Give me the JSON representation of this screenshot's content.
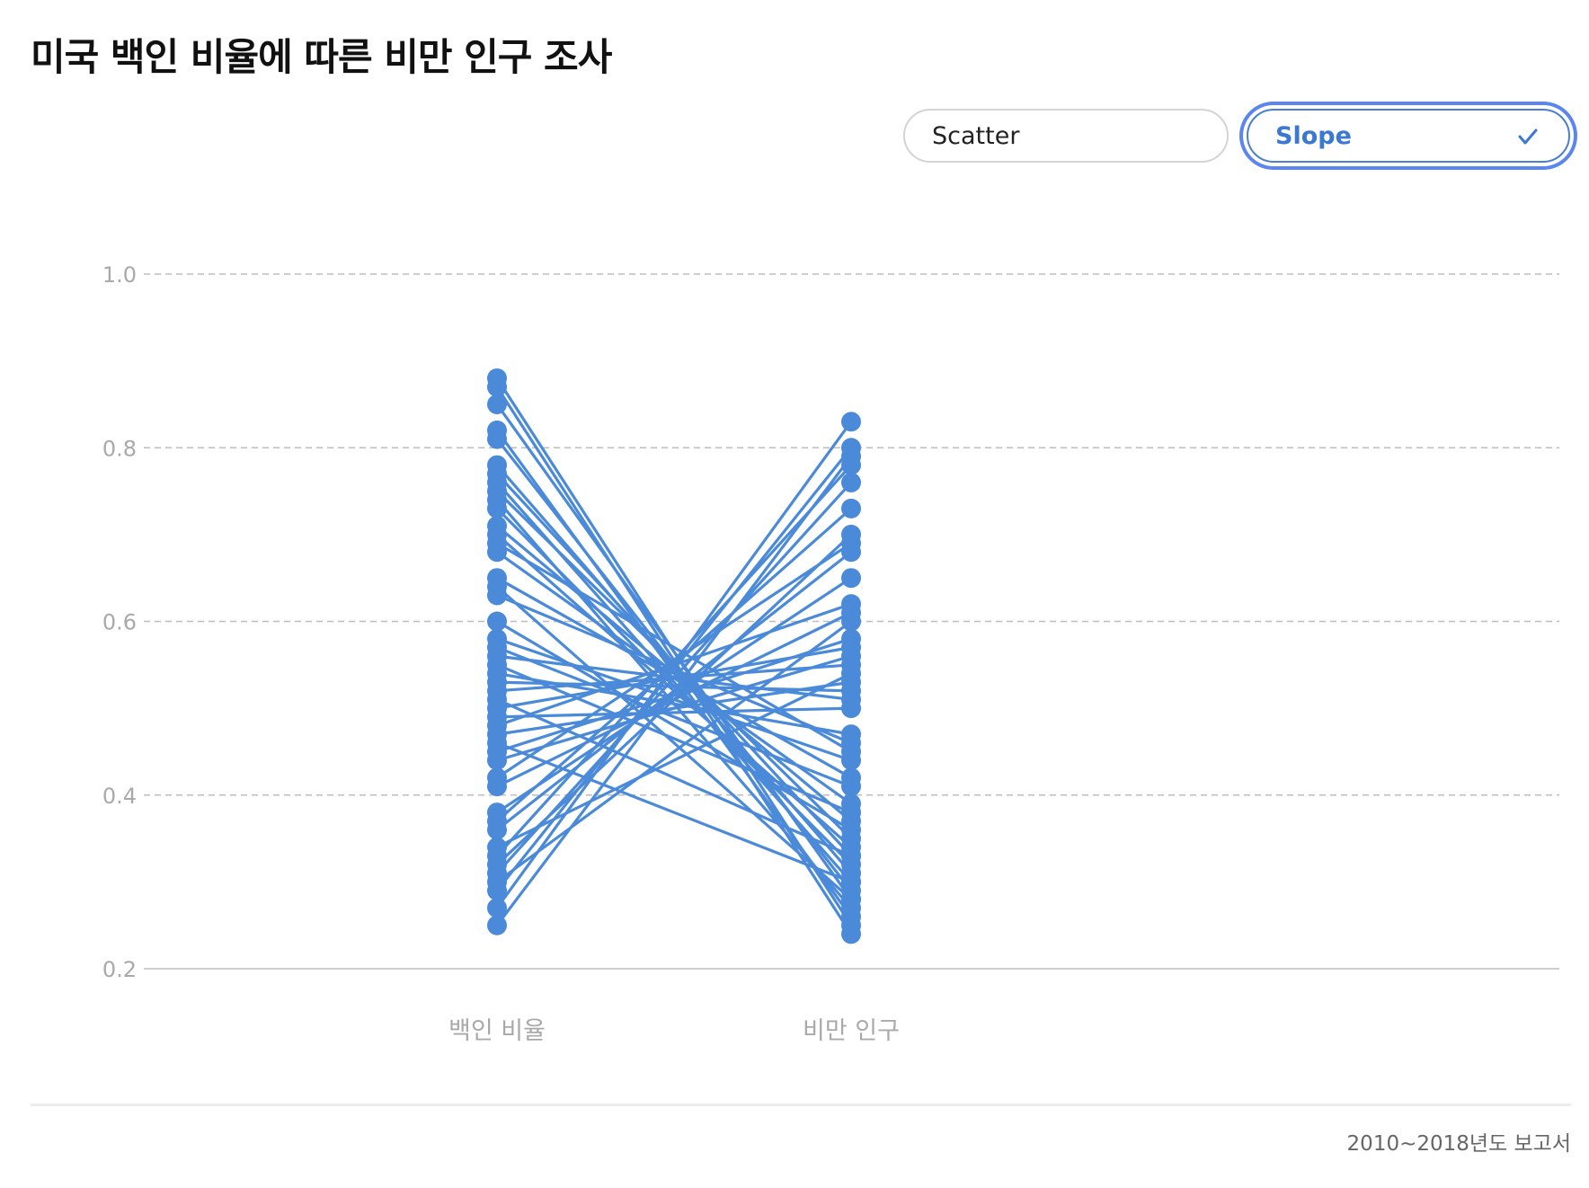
{
  "title": "미국 백인 비율에 따른 비만 인구 조사",
  "toggles": [
    {
      "label": "Scatter",
      "selected": false
    },
    {
      "label": "Slope",
      "selected": true
    }
  ],
  "colors": {
    "series": "#4a8ad9",
    "accent": "#3b78d3",
    "grid": "#bdbdbd",
    "axis_text": "#a9a9a9"
  },
  "chart_data": {
    "type": "line",
    "subtype": "slope",
    "categories": [
      "백인 비율",
      "비만 인구"
    ],
    "ylim": [
      0.2,
      1.0
    ],
    "yticks": [
      "0.2",
      "0.4",
      "0.6",
      "0.8",
      "1.0"
    ],
    "grid": true,
    "pairs": [
      [
        0.88,
        0.25
      ],
      [
        0.87,
        0.24
      ],
      [
        0.85,
        0.28
      ],
      [
        0.82,
        0.26
      ],
      [
        0.81,
        0.29
      ],
      [
        0.78,
        0.31
      ],
      [
        0.77,
        0.33
      ],
      [
        0.76,
        0.3
      ],
      [
        0.75,
        0.35
      ],
      [
        0.74,
        0.27
      ],
      [
        0.73,
        0.32
      ],
      [
        0.71,
        0.37
      ],
      [
        0.7,
        0.34
      ],
      [
        0.69,
        0.45
      ],
      [
        0.68,
        0.39
      ],
      [
        0.65,
        0.42
      ],
      [
        0.64,
        0.28
      ],
      [
        0.63,
        0.46
      ],
      [
        0.6,
        0.36
      ],
      [
        0.58,
        0.44
      ],
      [
        0.57,
        0.41
      ],
      [
        0.56,
        0.51
      ],
      [
        0.55,
        0.38
      ],
      [
        0.54,
        0.47
      ],
      [
        0.53,
        0.52
      ],
      [
        0.52,
        0.55
      ],
      [
        0.51,
        0.33
      ],
      [
        0.5,
        0.57
      ],
      [
        0.49,
        0.5
      ],
      [
        0.48,
        0.62
      ],
      [
        0.47,
        0.53
      ],
      [
        0.46,
        0.3
      ],
      [
        0.45,
        0.58
      ],
      [
        0.44,
        0.56
      ],
      [
        0.42,
        0.69
      ],
      [
        0.41,
        0.61
      ],
      [
        0.38,
        0.65
      ],
      [
        0.37,
        0.73
      ],
      [
        0.36,
        0.68
      ],
      [
        0.34,
        0.54
      ],
      [
        0.33,
        0.78
      ],
      [
        0.32,
        0.7
      ],
      [
        0.31,
        0.76
      ],
      [
        0.3,
        0.6
      ],
      [
        0.29,
        0.8
      ],
      [
        0.27,
        0.83
      ],
      [
        0.25,
        0.79
      ]
    ]
  },
  "footnote": "2010~2018년도 보고서"
}
